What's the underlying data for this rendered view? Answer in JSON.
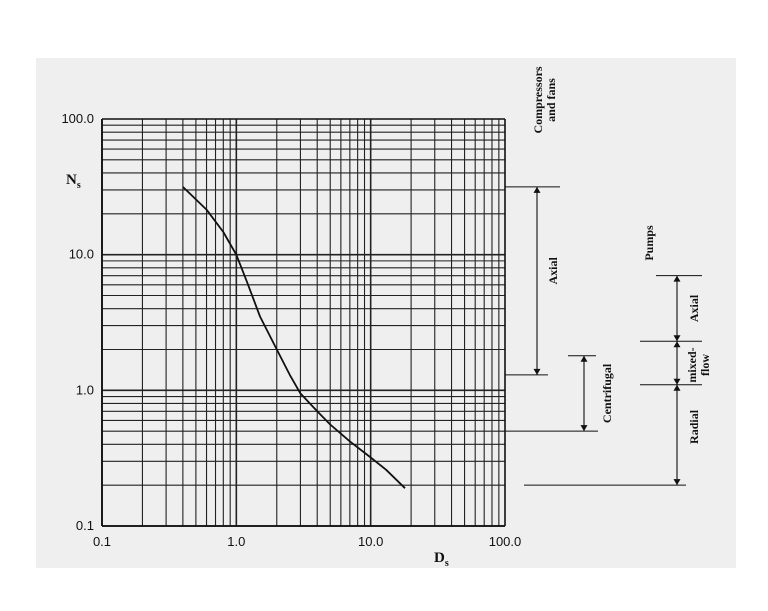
{
  "chart_data": {
    "type": "line",
    "title": "",
    "xlabel": "D",
    "xlabel_sub": "s",
    "ylabel": "N",
    "ylabel_sub": "s",
    "xscale": "log",
    "yscale": "log",
    "xlim": [
      0.1,
      100.0
    ],
    "ylim": [
      0.1,
      100.0
    ],
    "xticks": [
      "0.1",
      "1.0",
      "10.0",
      "100.0"
    ],
    "yticks": [
      "0.1",
      "1.0",
      "10.0",
      "100.0"
    ],
    "grid": true,
    "series": [
      {
        "x": [
          0.4,
          0.6,
          0.8,
          1.0,
          1.2,
          1.5,
          2.0,
          2.5,
          3.0,
          4.0,
          5.0,
          7.0,
          10.0,
          13.0,
          18.0
        ],
        "y": [
          31.6,
          21.5,
          14.7,
          10.0,
          6.3,
          3.5,
          2.0,
          1.3,
          0.95,
          0.7,
          0.56,
          0.42,
          0.32,
          0.26,
          0.19
        ]
      }
    ],
    "annotations": {
      "compressors_title": [
        "Compressors",
        "and fans"
      ],
      "compressors": [
        {
          "label": "Axial",
          "range": [
            1.3,
            31.6
          ]
        },
        {
          "label": "Centrifugal",
          "range": [
            0.5,
            1.8
          ]
        }
      ],
      "pumps_title": "Pumps",
      "pumps": [
        {
          "label": "Axial",
          "range": [
            2.3,
            7.0
          ]
        },
        {
          "label": [
            "mixed-",
            "flow"
          ],
          "range": [
            1.1,
            2.3
          ]
        },
        {
          "label": "Radial",
          "range": [
            0.2,
            1.1
          ]
        }
      ]
    }
  }
}
